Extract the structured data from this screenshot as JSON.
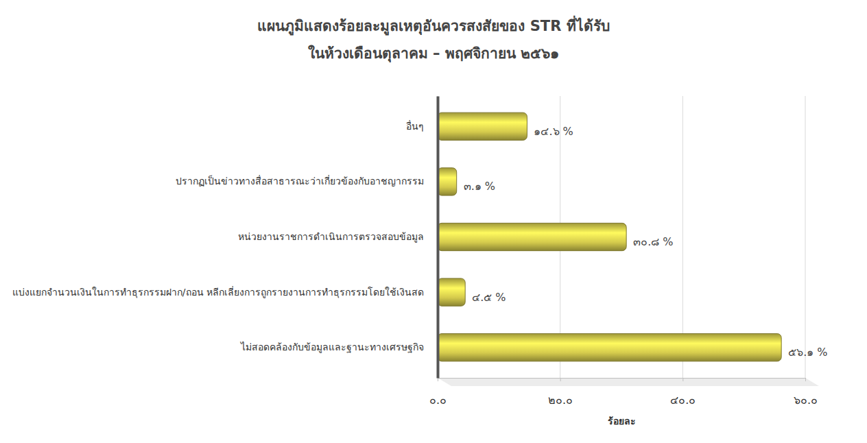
{
  "chart_data": {
    "type": "bar",
    "orientation": "horizontal",
    "title": "แผนภูมิแสดงร้อยละมูลเหตุอันควรสงสัยของ STR ที่ได้รับ",
    "subtitle": "ในห้วงเดือนตุลาคม – พฤศจิกายน ๒๕๖๑",
    "x_label": "ร้อยละ",
    "categories": [
      "อื่นๆ",
      "ปรากฏเป็นข่าวทางสื่อสาธารณะว่าเกี่ยวข้องกับอาชญากรรม",
      "หน่วยงานราชการดำเนินการตรวจสอบข้อมูล",
      "แบ่งแยกจำนวนเงินในการทำธุรกรรมฝาก/ถอน หลีกเลี่ยงการถูกรายงานการทำธุรกรรมโดยใช้เงินสด",
      "ไม่สอดคล้องกับข้อมูลและฐานะทางเศรษฐกิจ"
    ],
    "values": [
      14.6,
      3.1,
      30.8,
      4.5,
      56.1
    ],
    "value_labels": [
      "๑๔.๖ %",
      "๓.๑ %",
      "๓๐.๘ %",
      "๔.๕ %",
      "๕๖.๑ %"
    ],
    "data_labels": true,
    "color": "#d4ca4c",
    "xlim": [
      0,
      60
    ],
    "xticks": [
      {
        "value": 0,
        "label": "๐.๐"
      },
      {
        "value": 20,
        "label": "๒๐.๐"
      },
      {
        "value": 40,
        "label": "๔๐.๐"
      },
      {
        "value": 60,
        "label": "๖๐.๐"
      }
    ],
    "grid": true
  }
}
